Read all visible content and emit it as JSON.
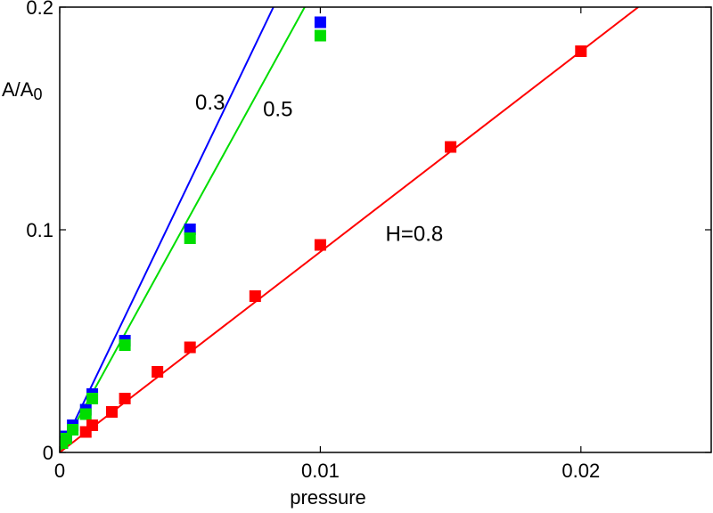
{
  "chart_data": {
    "type": "scatter",
    "title": "",
    "xlabel": "pressure",
    "ylabel": "A/A",
    "ylabel_subscript": "0",
    "xlim": [
      0,
      0.025
    ],
    "ylim": [
      0,
      0.2
    ],
    "xticks": [
      {
        "value": 0,
        "label": "0"
      },
      {
        "value": 0.01,
        "label": "0.01"
      },
      {
        "value": 0.02,
        "label": "0.02"
      }
    ],
    "yticks": [
      {
        "value": 0,
        "label": "0"
      },
      {
        "value": 0.1,
        "label": "0.1"
      },
      {
        "value": 0.2,
        "label": "0.2"
      }
    ],
    "grid": false,
    "legend": "none",
    "series": [
      {
        "label": "0.3",
        "color": "#0000ff",
        "line": {
          "x": [
            0,
            0.0082
          ],
          "y": [
            0,
            0.2
          ]
        },
        "points": [
          {
            "x": 0.0001,
            "y": 0.0047
          },
          {
            "x": 0.00025,
            "y": 0.0072
          },
          {
            "x": 0.0005,
            "y": 0.0122
          },
          {
            "x": 0.001,
            "y": 0.0192
          },
          {
            "x": 0.00125,
            "y": 0.0262
          },
          {
            "x": 0.0025,
            "y": 0.0502
          },
          {
            "x": 0.005,
            "y": 0.1002
          },
          {
            "x": 0.01,
            "y": 0.1932
          }
        ]
      },
      {
        "label": "0.5",
        "color": "#00dd00",
        "line": {
          "x": [
            0,
            0.0094
          ],
          "y": [
            0,
            0.2
          ]
        },
        "points": [
          {
            "x": 0.0001,
            "y": 0.0042
          },
          {
            "x": 0.00025,
            "y": 0.0062
          },
          {
            "x": 0.0005,
            "y": 0.0102
          },
          {
            "x": 0.001,
            "y": 0.0172
          },
          {
            "x": 0.00125,
            "y": 0.0242
          },
          {
            "x": 0.0025,
            "y": 0.0482
          },
          {
            "x": 0.005,
            "y": 0.0962
          },
          {
            "x": 0.01,
            "y": 0.1872
          }
        ]
      },
      {
        "label": "H=0.8",
        "color": "#ff0000",
        "line": {
          "x": [
            0,
            0.0222
          ],
          "y": [
            0,
            0.2
          ]
        },
        "points": [
          {
            "x": 0.001,
            "y": 0.0092
          },
          {
            "x": 0.00125,
            "y": 0.0122
          },
          {
            "x": 0.002,
            "y": 0.0182
          },
          {
            "x": 0.0025,
            "y": 0.0242
          },
          {
            "x": 0.00375,
            "y": 0.0362
          },
          {
            "x": 0.005,
            "y": 0.0472
          },
          {
            "x": 0.0075,
            "y": 0.0702
          },
          {
            "x": 0.01,
            "y": 0.0932
          },
          {
            "x": 0.015,
            "y": 0.1372
          },
          {
            "x": 0.02,
            "y": 0.1802
          }
        ]
      }
    ],
    "annotations": [
      {
        "text": "0.3",
        "x": 0.0052,
        "y": 0.154
      },
      {
        "text": "0.5",
        "x": 0.0078,
        "y": 0.151
      },
      {
        "text": "H=0.8",
        "x": 0.0125,
        "y": 0.095
      }
    ]
  }
}
